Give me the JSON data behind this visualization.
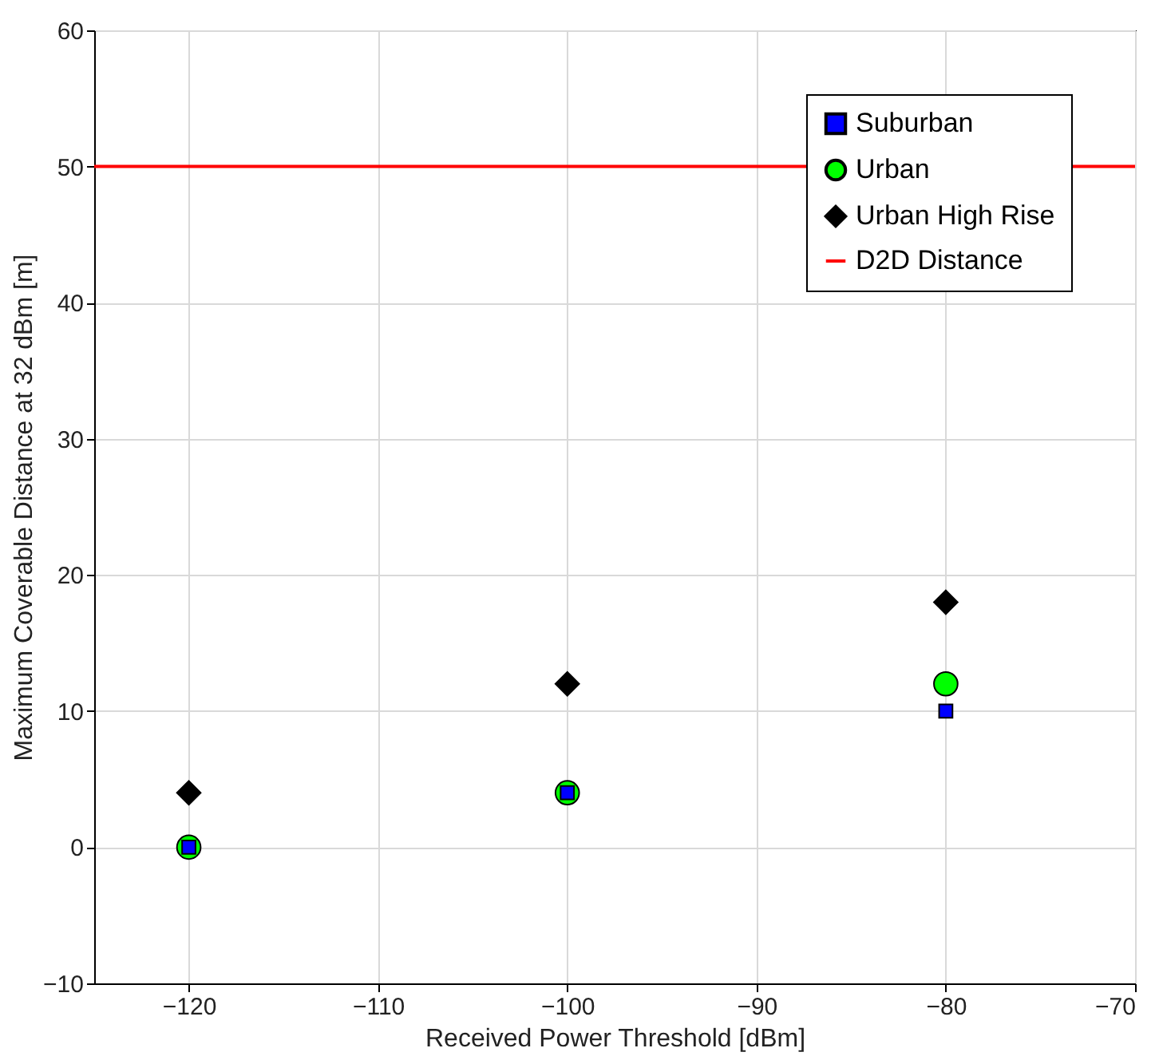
{
  "chart_data": {
    "type": "scatter",
    "xlabel": "Received Power Threshold [dBm]",
    "ylabel": "Maximum Coverable Distance at 32 dBm [m]",
    "x": [
      -120,
      -100,
      -80
    ],
    "series": [
      {
        "name": "Suburban",
        "color": "#0000ff",
        "marker": "square",
        "values": [
          0,
          4,
          10
        ]
      },
      {
        "name": "Urban",
        "color": "#00ff00",
        "marker": "circle",
        "values": [
          0,
          4,
          12
        ]
      },
      {
        "name": "Urban High Rise",
        "color": "#000000",
        "marker": "diamond",
        "values": [
          4,
          12,
          18
        ]
      }
    ],
    "ref_lines": [
      {
        "axis": "y",
        "value": 50,
        "label": "D2D Distance",
        "color": "#ff0000",
        "line_style": "solid"
      }
    ],
    "xlim": [
      -125,
      -70
    ],
    "xticks": [
      -120,
      -110,
      -100,
      -90,
      -80,
      -70
    ],
    "ylim": [
      -10,
      60
    ],
    "yticks": [
      -10,
      0,
      10,
      20,
      30,
      40,
      50,
      60
    ],
    "grid": true,
    "legend": "top right"
  }
}
